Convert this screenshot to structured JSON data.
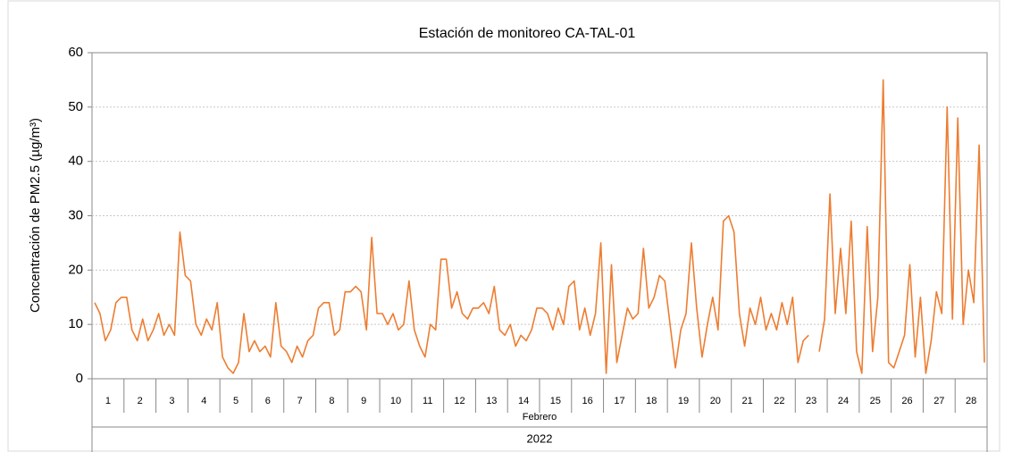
{
  "chart_data": {
    "type": "line",
    "title": "Estación de monitoreo CA-TAL-01",
    "ylabel": "Concentración de PM2.5 (µg/m³)",
    "month": "Febrero",
    "year": "2022",
    "categories": [
      "1",
      "2",
      "3",
      "4",
      "5",
      "6",
      "7",
      "8",
      "9",
      "10",
      "11",
      "12",
      "13",
      "14",
      "15",
      "16",
      "17",
      "18",
      "19",
      "20",
      "21",
      "22",
      "23",
      "24",
      "25",
      "26",
      "27",
      "28"
    ],
    "series": [
      {
        "name": "PM2.5",
        "color": "#ed7d31",
        "values": [
          [
            14,
            12,
            7,
            9,
            14,
            15
          ],
          [
            15,
            9,
            7,
            11,
            7,
            9
          ],
          [
            12,
            8,
            10,
            8,
            27,
            19
          ],
          [
            18,
            10,
            8,
            11,
            9,
            14
          ],
          [
            4,
            2,
            1,
            3,
            12,
            5
          ],
          [
            7,
            5,
            6,
            4,
            14,
            6
          ],
          [
            5,
            3,
            6,
            4,
            7,
            8
          ],
          [
            13,
            14,
            14,
            8,
            9,
            16
          ],
          [
            16,
            17,
            16,
            9,
            26,
            12
          ],
          [
            12,
            10,
            12,
            9,
            10,
            18
          ],
          [
            9,
            6,
            4,
            10,
            9,
            22
          ],
          [
            22,
            13,
            16,
            12,
            11,
            13
          ],
          [
            13,
            14,
            12,
            17,
            9,
            8
          ],
          [
            10,
            6,
            8,
            7,
            9,
            13
          ],
          [
            13,
            12,
            9,
            13,
            10,
            17
          ],
          [
            18,
            9,
            13,
            8,
            12,
            25
          ],
          [
            1,
            21,
            3,
            8,
            13,
            11
          ],
          [
            12,
            24,
            13,
            15,
            19,
            18
          ],
          [
            10,
            2,
            9,
            12,
            25,
            13
          ],
          [
            4,
            10,
            15,
            9,
            29,
            30
          ],
          [
            27,
            12,
            6,
            13,
            10,
            15
          ],
          [
            9,
            12,
            9,
            14,
            10,
            15
          ],
          [
            3,
            7,
            8,
            null,
            5,
            11
          ],
          [
            34,
            12,
            24,
            12,
            29,
            5
          ],
          [
            1,
            28,
            5,
            15,
            55,
            3
          ],
          [
            2,
            5,
            8,
            21,
            4,
            15
          ],
          [
            1,
            7,
            16,
            12,
            50,
            11
          ],
          [
            48,
            10,
            20,
            14,
            43,
            3
          ]
        ]
      }
    ],
    "ylim": [
      0,
      60
    ],
    "yticks": [
      0,
      10,
      20,
      30,
      40,
      50,
      60
    ],
    "grid": true
  }
}
